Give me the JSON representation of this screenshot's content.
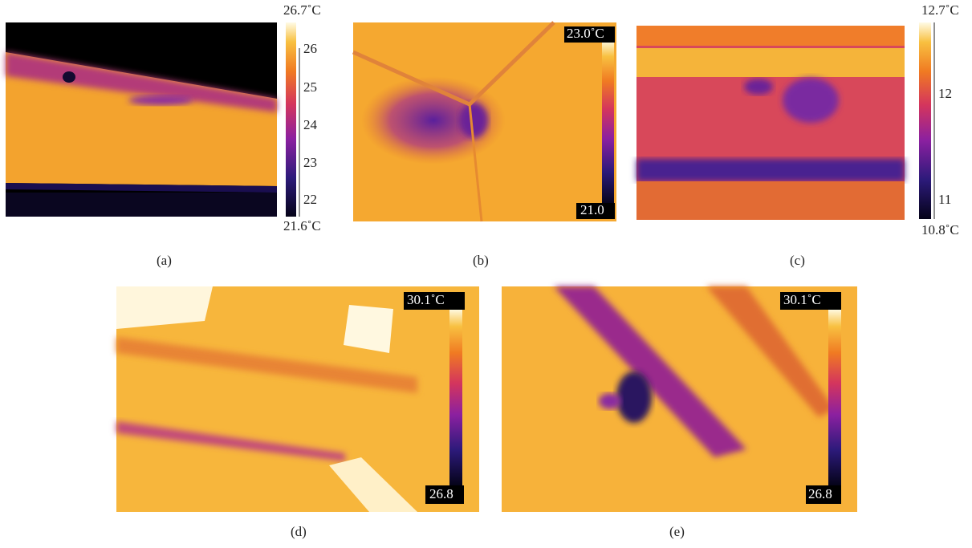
{
  "panels": [
    {
      "caption": "(a)",
      "scale_max": "26.7˚C",
      "scale_min": "21.6˚C",
      "ticks": [
        "26",
        "25",
        "24",
        "23",
        "22"
      ]
    },
    {
      "caption": "(b)",
      "scale_max": "23.0˚C",
      "scale_min": "21.0"
    },
    {
      "caption": "(c)",
      "scale_max": "12.7˚C",
      "scale_min": "10.8˚C",
      "ticks": [
        "12",
        "11"
      ]
    },
    {
      "caption": "(d)",
      "scale_max": "30.1˚C",
      "scale_min": "26.8"
    },
    {
      "caption": "(e)",
      "scale_max": "30.1˚C",
      "scale_min": "26.8"
    }
  ]
}
